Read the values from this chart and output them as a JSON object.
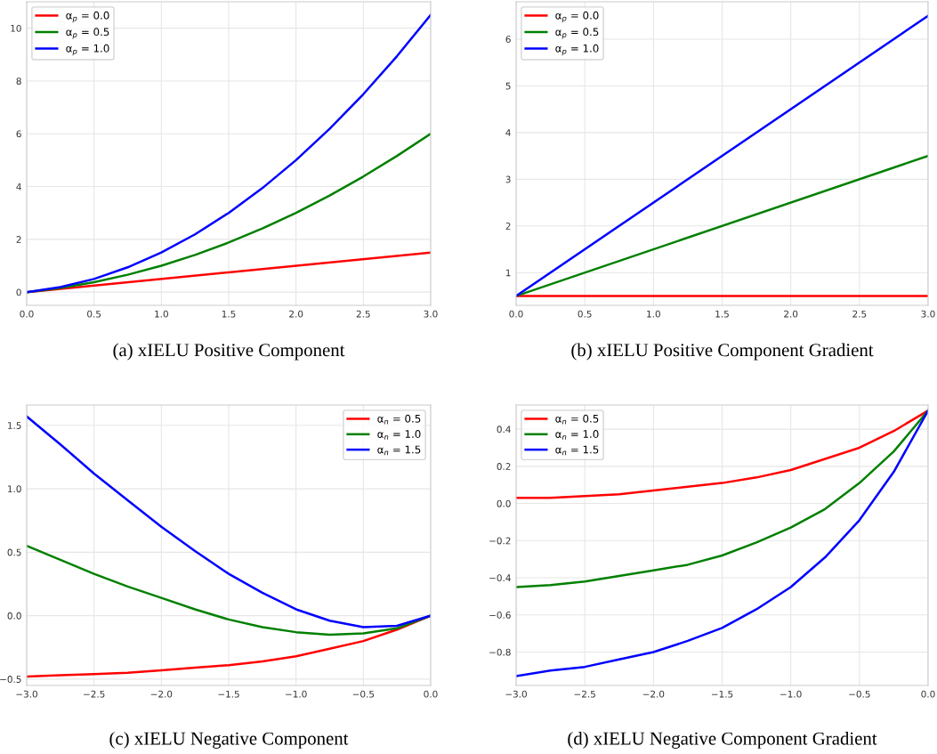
{
  "chart_data": [
    {
      "type": "line",
      "title": "(a) xIELU Positive Component",
      "grid": true,
      "legend": "top left",
      "xlim": [
        0,
        3
      ],
      "ylim": [
        -0.5,
        11
      ],
      "xticks": [
        {
          "value": 0,
          "label": "0.0"
        },
        {
          "value": 0.5,
          "label": "0.5"
        },
        {
          "value": 1,
          "label": "1.0"
        },
        {
          "value": 1.5,
          "label": "1.5"
        },
        {
          "value": 2,
          "label": "2.0"
        },
        {
          "value": 2.5,
          "label": "2.5"
        },
        {
          "value": 3,
          "label": "3.0"
        }
      ],
      "yticks": [
        0,
        2,
        4,
        6,
        8,
        10
      ],
      "series": [
        {
          "name": "α$_{p}$ = 0.0",
          "color": "#ff0000",
          "x": [
            0,
            3
          ],
          "values": [
            0,
            1.5
          ]
        },
        {
          "name": "α$_{p}$ = 0.5",
          "color": "#008000",
          "x": [
            0,
            0.25,
            0.5,
            0.75,
            1,
            1.25,
            1.5,
            1.75,
            2,
            2.25,
            2.5,
            2.75,
            3
          ],
          "values": [
            0,
            0.16,
            0.38,
            0.66,
            1,
            1.41,
            1.88,
            2.41,
            3,
            3.66,
            4.38,
            5.16,
            6
          ]
        },
        {
          "name": "α$_{p}$ = 1.0",
          "color": "#0000ff",
          "x": [
            0,
            0.25,
            0.5,
            0.75,
            1,
            1.25,
            1.5,
            1.75,
            2,
            2.25,
            2.5,
            2.75,
            3
          ],
          "values": [
            0,
            0.19,
            0.5,
            0.94,
            1.5,
            2.19,
            3,
            3.94,
            5,
            6.19,
            7.5,
            8.94,
            10.5
          ]
        }
      ]
    },
    {
      "type": "line",
      "title": "(b) xIELU Positive Component Gradient",
      "grid": true,
      "legend": "top left",
      "xlim": [
        0,
        3
      ],
      "ylim": [
        0.3,
        6.8
      ],
      "xticks": [
        {
          "value": 0,
          "label": "0.0"
        },
        {
          "value": 0.5,
          "label": "0.5"
        },
        {
          "value": 1,
          "label": "1.0"
        },
        {
          "value": 1.5,
          "label": "1.5"
        },
        {
          "value": 2,
          "label": "2.0"
        },
        {
          "value": 2.5,
          "label": "2.5"
        },
        {
          "value": 3,
          "label": "3.0"
        }
      ],
      "yticks": [
        1,
        2,
        3,
        4,
        5,
        6
      ],
      "series": [
        {
          "name": "α$_{p}$ = 0.0",
          "color": "#ff0000",
          "x": [
            0,
            3
          ],
          "values": [
            0.5,
            0.5
          ]
        },
        {
          "name": "α$_{p}$ = 0.5",
          "color": "#008000",
          "x": [
            0,
            3
          ],
          "values": [
            0.5,
            3.5
          ]
        },
        {
          "name": "α$_{p}$ = 1.0",
          "color": "#0000ff",
          "x": [
            0,
            3
          ],
          "values": [
            0.5,
            6.5
          ]
        }
      ]
    },
    {
      "type": "line",
      "title": "(c) xIELU Negative Component",
      "grid": true,
      "legend": "top right",
      "xlim": [
        -3,
        0
      ],
      "ylim": [
        -0.55,
        1.66
      ],
      "xticks": [
        {
          "value": -3,
          "label": "−3.0"
        },
        {
          "value": -2.5,
          "label": "−2.5"
        },
        {
          "value": -2,
          "label": "−2.0"
        },
        {
          "value": -1.5,
          "label": "−1.5"
        },
        {
          "value": -1,
          "label": "−1.0"
        },
        {
          "value": -0.5,
          "label": "−0.5"
        },
        {
          "value": 0,
          "label": "0.0"
        }
      ],
      "yticks": [
        {
          "value": -0.5,
          "label": "−0.5"
        },
        {
          "value": 0,
          "label": "0.0"
        },
        {
          "value": 0.5,
          "label": "0.5"
        },
        {
          "value": 1,
          "label": "1.0"
        },
        {
          "value": 1.5,
          "label": "1.5"
        }
      ],
      "series": [
        {
          "name": "α$_{n}$ = 0.5",
          "color": "#ff0000",
          "x": [
            -3,
            -2.75,
            -2.5,
            -2.25,
            -2,
            -1.75,
            -1.5,
            -1.25,
            -1,
            -0.75,
            -0.5,
            -0.25,
            0
          ],
          "values": [
            -0.48,
            -0.47,
            -0.46,
            -0.45,
            -0.43,
            -0.41,
            -0.39,
            -0.36,
            -0.32,
            -0.26,
            -0.2,
            -0.11,
            0
          ]
        },
        {
          "name": "α$_{n}$ = 1.0",
          "color": "#008000",
          "x": [
            -3,
            -2.75,
            -2.5,
            -2.25,
            -2,
            -1.75,
            -1.5,
            -1.25,
            -1,
            -0.75,
            -0.5,
            -0.25,
            0
          ],
          "values": [
            0.55,
            0.44,
            0.33,
            0.23,
            0.14,
            0.05,
            -0.03,
            -0.09,
            -0.13,
            -0.15,
            -0.14,
            -0.1,
            0
          ]
        },
        {
          "name": "α$_{n}$ = 1.5",
          "color": "#0000ff",
          "x": [
            -3,
            -2.75,
            -2.5,
            -2.25,
            -2,
            -1.75,
            -1.5,
            -1.25,
            -1,
            -0.75,
            -0.5,
            -0.25,
            0
          ],
          "values": [
            1.57,
            1.35,
            1.12,
            0.91,
            0.7,
            0.51,
            0.33,
            0.18,
            0.05,
            -0.04,
            -0.09,
            -0.08,
            0
          ]
        }
      ]
    },
    {
      "type": "line",
      "title": "(d) xIELU Negative Component Gradient",
      "grid": true,
      "legend": "top left",
      "xlim": [
        -3,
        0
      ],
      "ylim": [
        -0.98,
        0.53
      ],
      "xticks": [
        {
          "value": -3,
          "label": "−3.0"
        },
        {
          "value": -2.5,
          "label": "−2.5"
        },
        {
          "value": -2,
          "label": "−2.0"
        },
        {
          "value": -1.5,
          "label": "−1.5"
        },
        {
          "value": -1,
          "label": "−1.0"
        },
        {
          "value": -0.5,
          "label": "−0.5"
        },
        {
          "value": 0,
          "label": "0.0"
        }
      ],
      "yticks": [
        {
          "value": -0.8,
          "label": "−0.8"
        },
        {
          "value": -0.6,
          "label": "−0.6"
        },
        {
          "value": -0.4,
          "label": "−0.4"
        },
        {
          "value": -0.2,
          "label": "−0.2"
        },
        {
          "value": 0,
          "label": "0.0"
        },
        {
          "value": 0.2,
          "label": "0.2"
        },
        {
          "value": 0.4,
          "label": "0.4"
        }
      ],
      "series": [
        {
          "name": "α$_{n}$ = 0.5",
          "color": "#ff0000",
          "x": [
            -3,
            -2.75,
            -2.5,
            -2.25,
            -2,
            -1.75,
            -1.5,
            -1.25,
            -1,
            -0.75,
            -0.5,
            -0.25,
            0
          ],
          "values": [
            0.03,
            0.03,
            0.04,
            0.05,
            0.07,
            0.09,
            0.11,
            0.14,
            0.18,
            0.24,
            0.3,
            0.39,
            0.5
          ]
        },
        {
          "name": "α$_{n}$ = 1.0",
          "color": "#008000",
          "x": [
            -3,
            -2.75,
            -2.5,
            -2.25,
            -2,
            -1.75,
            -1.5,
            -1.25,
            -1,
            -0.75,
            -0.5,
            -0.25,
            0
          ],
          "values": [
            -0.45,
            -0.44,
            -0.42,
            -0.39,
            -0.36,
            -0.33,
            -0.28,
            -0.21,
            -0.13,
            -0.03,
            0.11,
            0.28,
            0.5
          ]
        },
        {
          "name": "α$_{n}$ = 1.5",
          "color": "#0000ff",
          "x": [
            -3,
            -2.75,
            -2.5,
            -2.25,
            -2,
            -1.75,
            -1.5,
            -1.25,
            -1,
            -0.75,
            -0.5,
            -0.25,
            0
          ],
          "values": [
            -0.93,
            -0.9,
            -0.88,
            -0.84,
            -0.8,
            -0.74,
            -0.67,
            -0.57,
            -0.45,
            -0.29,
            -0.09,
            0.17,
            0.5
          ]
        }
      ]
    }
  ]
}
